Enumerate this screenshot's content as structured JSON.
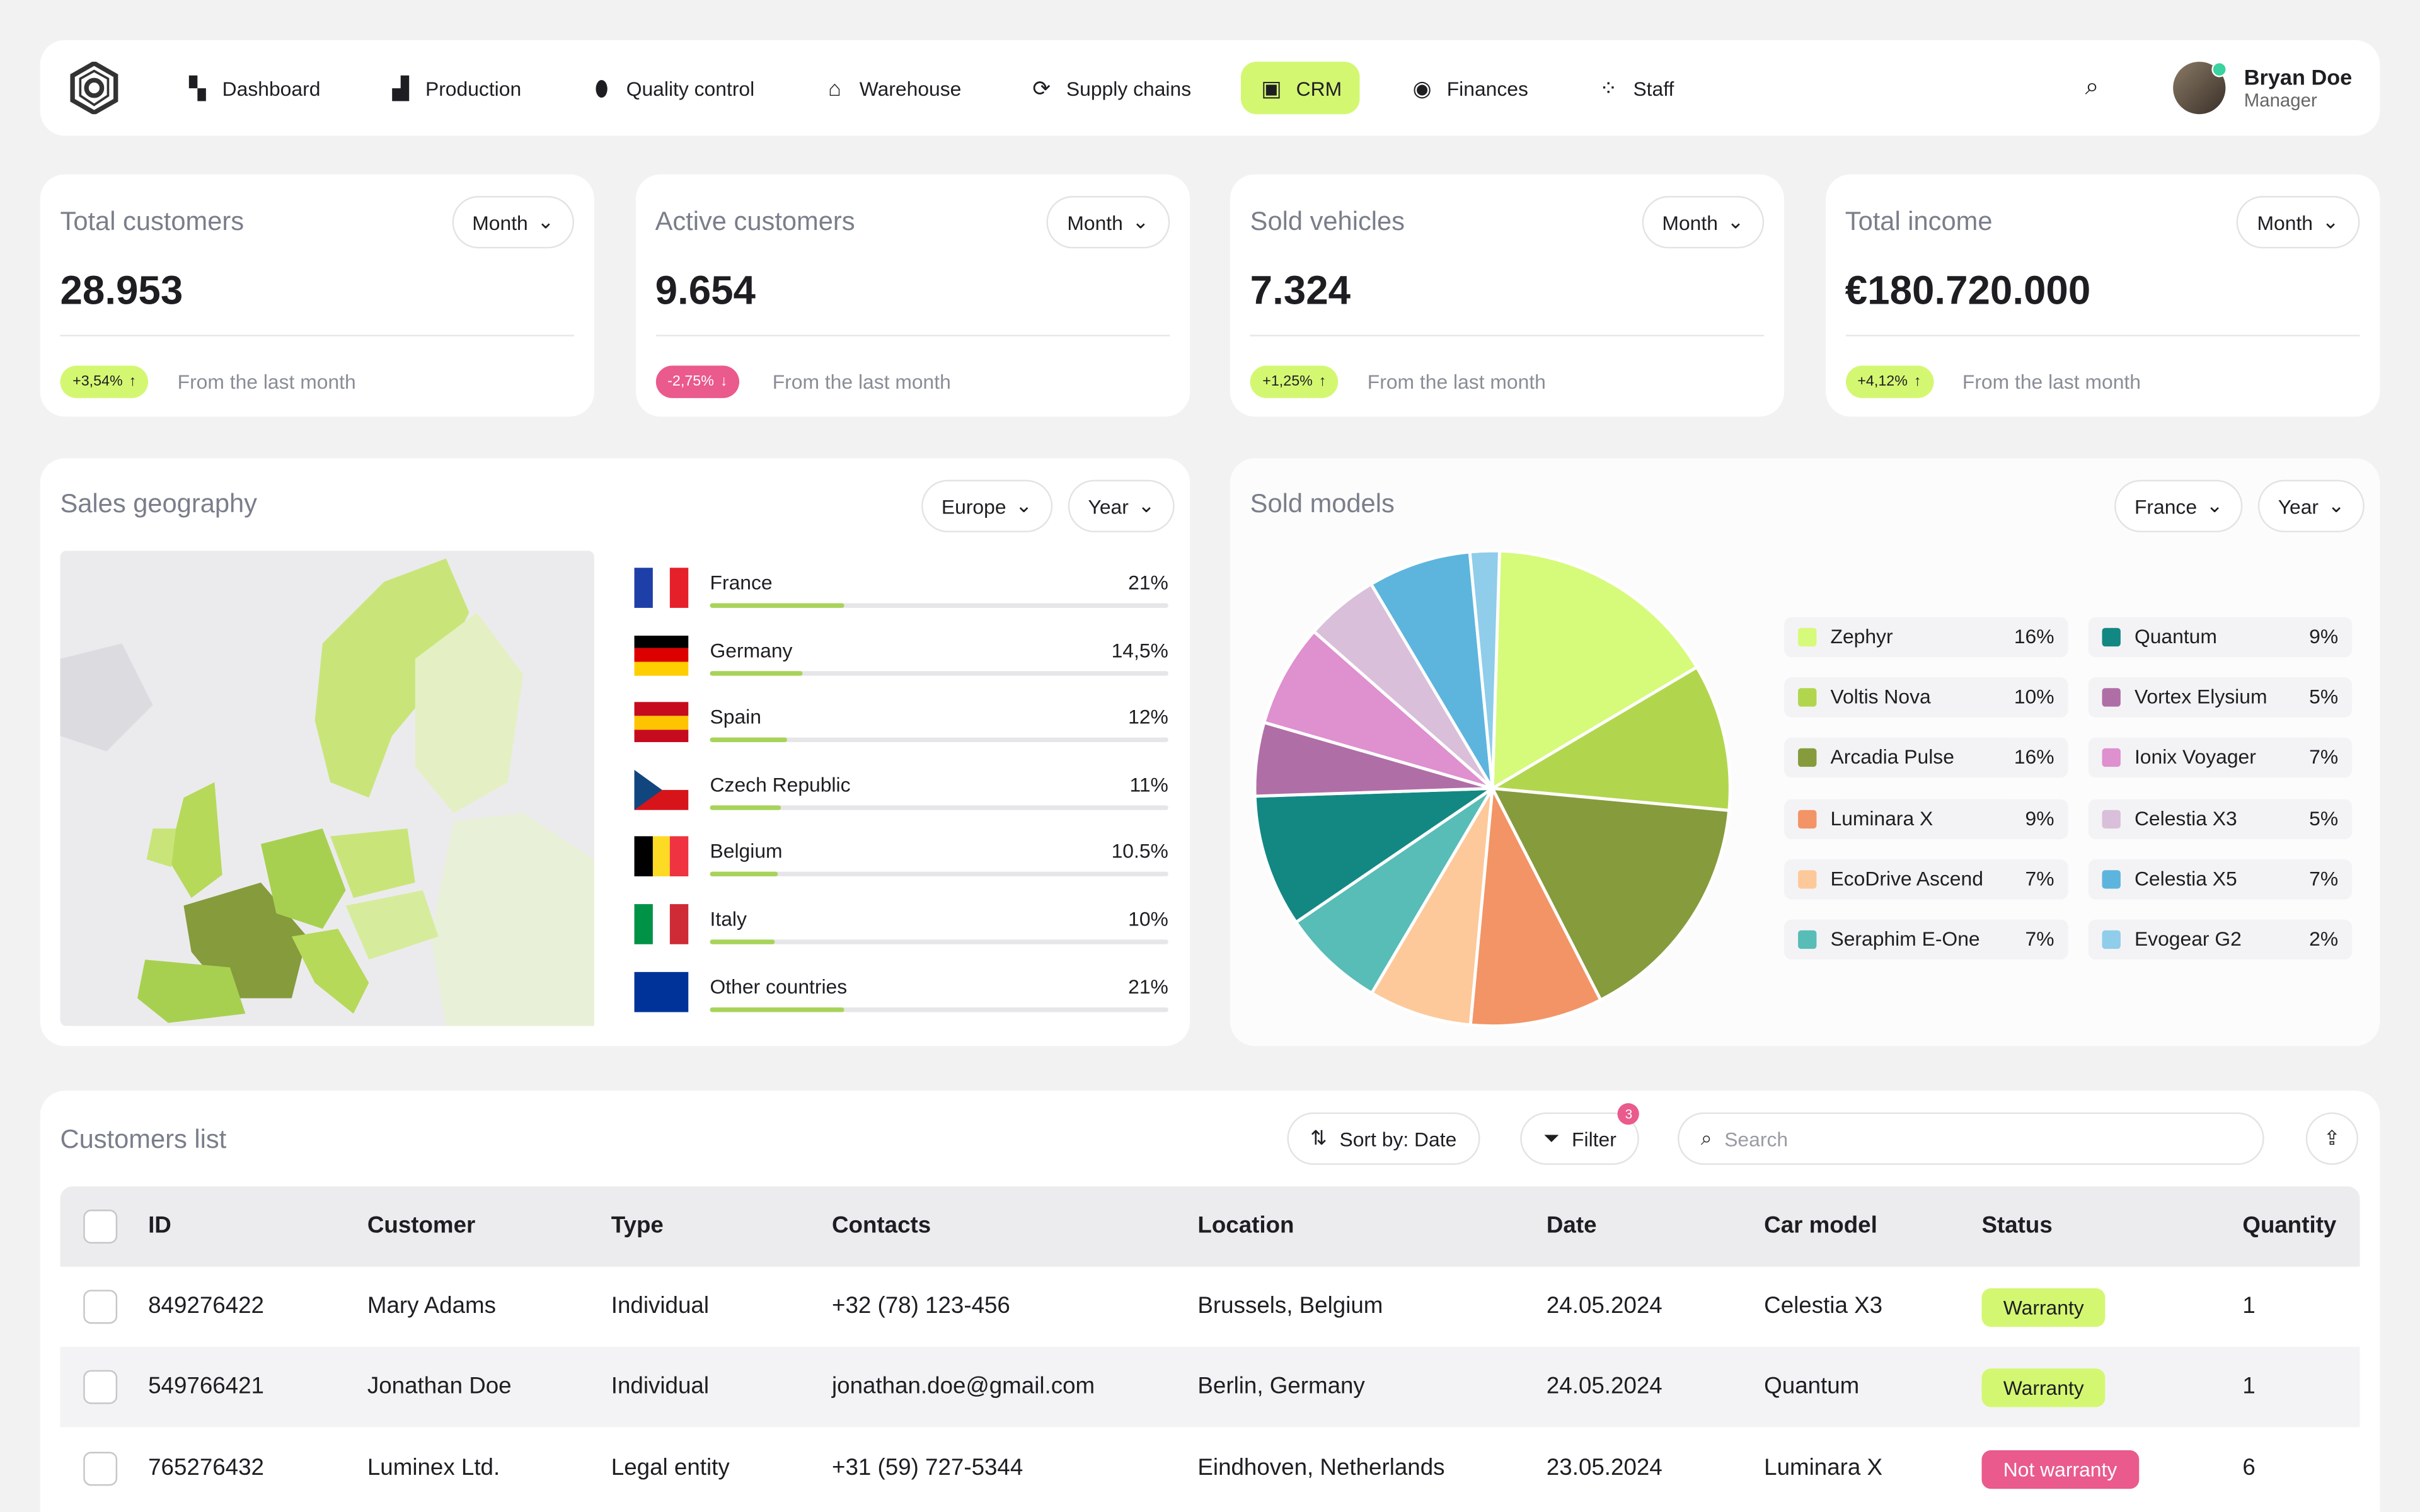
{
  "nav": {
    "items": [
      {
        "label": "Dashboard",
        "icon": "dashboard-icon",
        "glyph": "▚"
      },
      {
        "label": "Production",
        "icon": "factory-icon",
        "glyph": "▟"
      },
      {
        "label": "Quality control",
        "icon": "badge-icon",
        "glyph": "⬮"
      },
      {
        "label": "Warehouse",
        "icon": "warehouse-icon",
        "glyph": "⌂"
      },
      {
        "label": "Supply chains",
        "icon": "cycle-icon",
        "glyph": "⟳"
      },
      {
        "label": "CRM",
        "icon": "id-card-icon",
        "glyph": "▣"
      },
      {
        "label": "Finances",
        "icon": "coin-icon",
        "glyph": "◉"
      },
      {
        "label": "Staff",
        "icon": "people-icon",
        "glyph": "⁘"
      }
    ],
    "active": "CRM"
  },
  "user": {
    "name": "Bryan Doe",
    "role": "Manager"
  },
  "kpis": [
    {
      "title": "Total customers",
      "period": "Month",
      "value": "28.953",
      "change": "+3,54%",
      "dir": "up",
      "sub": "From the last month"
    },
    {
      "title": "Active customers",
      "period": "Month",
      "value": "9.654",
      "change": "-2,75%",
      "dir": "down",
      "sub": "From the last month"
    },
    {
      "title": "Sold vehicles",
      "period": "Month",
      "value": "7.324",
      "change": "+1,25%",
      "dir": "up",
      "sub": "From the last month"
    },
    {
      "title": "Total income",
      "period": "Month",
      "value": "€180.720.000",
      "change": "+4,12%",
      "dir": "up",
      "sub": "From the last month"
    }
  ],
  "geo": {
    "title": "Sales geography",
    "region": "Europe",
    "period": "Year",
    "countries": [
      {
        "name": "France",
        "pct": "21%",
        "value": 21,
        "flag": [
          "#1f3fa8",
          "#ffffff",
          "#e6202b"
        ]
      },
      {
        "name": "Germany",
        "pct": "14,5%",
        "value": 14.5,
        "flag": [
          "#000000",
          "#dd0000",
          "#ffce00"
        ],
        "horizontal": true
      },
      {
        "name": "Spain",
        "pct": "12%",
        "value": 12,
        "flag": [
          "#c60b1e",
          "#ffc400",
          "#c60b1e"
        ],
        "horizontal": true
      },
      {
        "name": "Czech Republic",
        "pct": "11%",
        "value": 11,
        "flag": [
          "#ffffff",
          "#d7141a"
        ],
        "horizontal": true
      },
      {
        "name": "Belgium",
        "pct": "10.5%",
        "value": 10.5,
        "flag": [
          "#000000",
          "#fdda24",
          "#ef3340"
        ]
      },
      {
        "name": "Italy",
        "pct": "10%",
        "value": 10,
        "flag": [
          "#009246",
          "#ffffff",
          "#ce2b37"
        ]
      },
      {
        "name": "Other countries",
        "pct": "21%",
        "value": 21,
        "flag": [
          "#003399"
        ]
      }
    ]
  },
  "models": {
    "title": "Sold models",
    "country": "France",
    "period": "Year"
  },
  "chart_data": {
    "type": "pie",
    "slices": [
      {
        "name": "Zephyr",
        "value": 16,
        "color": "#d6fa7a"
      },
      {
        "name": "Voltis Nova",
        "value": 10,
        "color": "#b1d64e"
      },
      {
        "name": "Arcadia Pulse",
        "value": 16,
        "color": "#869b3c"
      },
      {
        "name": "Luminara X",
        "value": 9,
        "color": "#f29466"
      },
      {
        "name": "EcoDrive Ascend",
        "value": 7,
        "color": "#fdc99a"
      },
      {
        "name": "Seraphim E-One",
        "value": 7,
        "color": "#58bcb7"
      },
      {
        "name": "Quantum",
        "value": 9,
        "color": "#138883"
      },
      {
        "name": "Vortex Elysium",
        "value": 5,
        "color": "#b06ea6"
      },
      {
        "name": "Ionix Voyager",
        "value": 7,
        "color": "#de90cf"
      },
      {
        "name": "Celestia X3",
        "value": 5,
        "color": "#d9bfd9"
      },
      {
        "name": "Celestia X5",
        "value": 7,
        "color": "#5db5dd"
      },
      {
        "name": "Evogear G2",
        "value": 2,
        "color": "#8fcdea"
      }
    ]
  },
  "customers": {
    "title": "Customers list",
    "sort": "Sort by: Date",
    "filter": "Filter",
    "filter_count": "3",
    "search_placeholder": "Search",
    "columns": [
      "ID",
      "Customer",
      "Type",
      "Contacts",
      "Location",
      "Date",
      "Car model",
      "Status",
      "Quantity"
    ],
    "rows": [
      [
        "849276422",
        "Mary Adams",
        "Individual",
        "+32 (78) 123-456",
        "Brussels, Belgium",
        "24.05.2024",
        "Celestia X3",
        "Warranty",
        "1"
      ],
      [
        "549766421",
        "Jonathan Doe",
        "Individual",
        "jonathan.doe@gmail.com",
        "Berlin, Germany",
        "24.05.2024",
        "Quantum",
        "Warranty",
        "1"
      ],
      [
        "765276432",
        "Luminex Ltd.",
        "Legal entity",
        "+31 (59) 727-5344",
        "Eindhoven, Netherlands",
        "23.05.2024",
        "Luminara X",
        "Not warranty",
        "6"
      ]
    ]
  }
}
